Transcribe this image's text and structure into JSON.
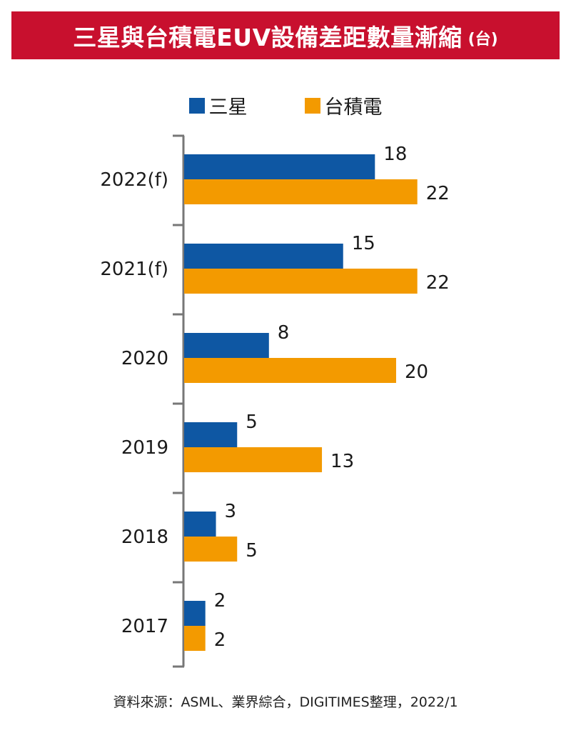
{
  "title": "三星與台積電EUV設備差距數量漸縮",
  "unit": "(台)",
  "source": "資料來源：ASML、業界綜合，DIGITIMES整理，2022/1",
  "chart_data": {
    "type": "bar",
    "orientation": "horizontal",
    "title": "三星與台積電EUV設備差距數量漸縮",
    "unit": "(台)",
    "categories": [
      "2022(f)",
      "2021(f)",
      "2020",
      "2019",
      "2018",
      "2017"
    ],
    "series": [
      {
        "name": "三星",
        "color": "#0e57a3",
        "values": [
          18,
          15,
          8,
          5,
          3,
          2
        ]
      },
      {
        "name": "台積電",
        "color": "#f39a00",
        "values": [
          22,
          22,
          20,
          13,
          5,
          2
        ]
      }
    ],
    "xlim": [
      0,
      22
    ],
    "grid": false,
    "legend_position": "top",
    "data_labels": true
  }
}
